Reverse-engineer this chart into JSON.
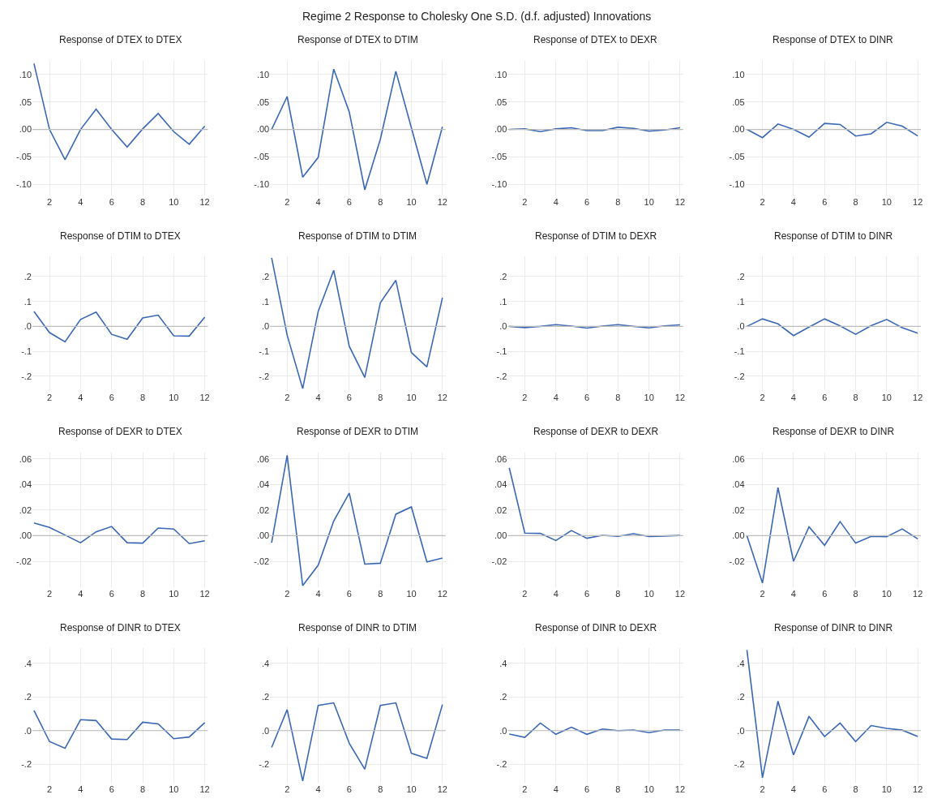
{
  "chart_data": [
    {
      "type": "line",
      "title": "Response of DTEX to DTEX",
      "annotations": [
        "Regime 2 Response to Cholesky One S.D. (d.f. adjusted) Innovations"
      ],
      "x": [
        1,
        2,
        3,
        4,
        5,
        6,
        7,
        8,
        9,
        10,
        11,
        12
      ],
      "values": [
        0.12,
        0.0,
        -0.055,
        0.0,
        0.037,
        0.0,
        -0.032,
        0.001,
        0.029,
        -0.004,
        -0.027,
        0.006
      ],
      "color": "#3a67b5",
      "xlim": [
        0.9,
        12.2
      ],
      "xticks": [
        2,
        4,
        6,
        8,
        10,
        12
      ],
      "ylim": [
        -0.12,
        0.125
      ],
      "yticks": [
        {
          "value": -0.1,
          "label": "-.10"
        },
        {
          "value": -0.05,
          "label": "-.05"
        },
        {
          "value": 0,
          "label": ".00"
        },
        {
          "value": 0.05,
          "label": ".05"
        },
        {
          "value": 0.1,
          "label": ".10"
        }
      ],
      "grid": true,
      "ref_lines": [
        {
          "axis": "y",
          "value": 0
        }
      ]
    },
    {
      "type": "line",
      "title": "Response of DTEX to DTIM",
      "x": [
        1,
        2,
        3,
        4,
        5,
        6,
        7,
        8,
        9,
        10,
        11,
        12
      ],
      "values": [
        0.0,
        0.06,
        -0.087,
        -0.051,
        0.11,
        0.032,
        -0.11,
        -0.018,
        0.106,
        0.003,
        -0.1,
        0.005
      ],
      "color": "#3a67b5",
      "xlim": [
        0.9,
        12.2
      ],
      "xticks": [
        2,
        4,
        6,
        8,
        10,
        12
      ],
      "ylim": [
        -0.12,
        0.125
      ],
      "yticks": [
        {
          "value": -0.1,
          "label": "-.10"
        },
        {
          "value": -0.05,
          "label": "-.05"
        },
        {
          "value": 0,
          "label": ".00"
        },
        {
          "value": 0.05,
          "label": ".05"
        },
        {
          "value": 0.1,
          "label": ".10"
        }
      ],
      "grid": true,
      "ref_lines": [
        {
          "axis": "y",
          "value": 0
        }
      ]
    },
    {
      "type": "line",
      "title": "Response of DTEX to DEXR",
      "x": [
        1,
        2,
        3,
        4,
        5,
        6,
        7,
        8,
        9,
        10,
        11,
        12
      ],
      "values": [
        0.0,
        0.001,
        -0.004,
        0.001,
        0.003,
        -0.002,
        -0.002,
        0.004,
        0.002,
        -0.003,
        -0.001,
        0.003
      ],
      "color": "#3a67b5",
      "xlim": [
        0.9,
        12.2
      ],
      "xticks": [
        2,
        4,
        6,
        8,
        10,
        12
      ],
      "ylim": [
        -0.12,
        0.125
      ],
      "yticks": [
        {
          "value": -0.1,
          "label": "-.10"
        },
        {
          "value": -0.05,
          "label": "-.05"
        },
        {
          "value": 0,
          "label": ".00"
        },
        {
          "value": 0.05,
          "label": ".05"
        },
        {
          "value": 0.1,
          "label": ".10"
        }
      ],
      "grid": true,
      "ref_lines": [
        {
          "axis": "y",
          "value": 0
        }
      ]
    },
    {
      "type": "line",
      "title": "Response of DTEX to DINR",
      "x": [
        1,
        2,
        3,
        4,
        5,
        6,
        7,
        8,
        9,
        10,
        11,
        12
      ],
      "values": [
        0.0,
        -0.015,
        0.01,
        0.0,
        -0.014,
        0.011,
        0.009,
        -0.012,
        -0.008,
        0.013,
        0.006,
        -0.012
      ],
      "color": "#3a67b5",
      "xlim": [
        0.9,
        12.2
      ],
      "xticks": [
        2,
        4,
        6,
        8,
        10,
        12
      ],
      "ylim": [
        -0.12,
        0.125
      ],
      "yticks": [
        {
          "value": -0.1,
          "label": "-.10"
        },
        {
          "value": -0.05,
          "label": "-.05"
        },
        {
          "value": 0,
          "label": ".00"
        },
        {
          "value": 0.05,
          "label": ".05"
        },
        {
          "value": 0.1,
          "label": ".10"
        }
      ],
      "grid": true,
      "ref_lines": [
        {
          "axis": "y",
          "value": 0
        }
      ]
    },
    {
      "type": "line",
      "title": "Response of DTIM to DTEX",
      "x": [
        1,
        2,
        3,
        4,
        5,
        6,
        7,
        8,
        9,
        10,
        11,
        12
      ],
      "values": [
        0.06,
        -0.025,
        -0.062,
        0.028,
        0.057,
        -0.032,
        -0.052,
        0.034,
        0.045,
        -0.038,
        -0.039,
        0.037
      ],
      "color": "#3a67b5",
      "xlim": [
        0.9,
        12.2
      ],
      "xticks": [
        2,
        4,
        6,
        8,
        10,
        12
      ],
      "ylim": [
        -0.26,
        0.28
      ],
      "yticks": [
        {
          "value": -0.2,
          "label": "-.2"
        },
        {
          "value": -0.1,
          "label": "-.1"
        },
        {
          "value": 0,
          "label": ".0"
        },
        {
          "value": 0.1,
          "label": ".1"
        },
        {
          "value": 0.2,
          "label": ".2"
        }
      ],
      "grid": true,
      "ref_lines": [
        {
          "axis": "y",
          "value": 0
        }
      ]
    },
    {
      "type": "line",
      "title": "Response of DTIM to DTIM",
      "x": [
        1,
        2,
        3,
        4,
        5,
        6,
        7,
        8,
        9,
        10,
        11,
        12
      ],
      "values": [
        0.275,
        -0.035,
        -0.25,
        0.06,
        0.225,
        -0.08,
        -0.205,
        0.095,
        0.185,
        -0.105,
        -0.163,
        0.115
      ],
      "color": "#3a67b5",
      "xlim": [
        0.9,
        12.2
      ],
      "xticks": [
        2,
        4,
        6,
        8,
        10,
        12
      ],
      "ylim": [
        -0.26,
        0.28
      ],
      "yticks": [
        {
          "value": -0.2,
          "label": "-.2"
        },
        {
          "value": -0.1,
          "label": "-.1"
        },
        {
          "value": 0,
          "label": ".0"
        },
        {
          "value": 0.1,
          "label": ".1"
        },
        {
          "value": 0.2,
          "label": ".2"
        }
      ],
      "grid": true,
      "ref_lines": [
        {
          "axis": "y",
          "value": 0
        }
      ]
    },
    {
      "type": "line",
      "title": "Response of DTIM to DEXR",
      "x": [
        1,
        2,
        3,
        4,
        5,
        6,
        7,
        8,
        9,
        10,
        11,
        12
      ],
      "values": [
        0.0,
        -0.005,
        0.0,
        0.007,
        0.001,
        -0.007,
        0.001,
        0.007,
        0.0,
        -0.006,
        0.002,
        0.006
      ],
      "color": "#3a67b5",
      "xlim": [
        0.9,
        12.2
      ],
      "xticks": [
        2,
        4,
        6,
        8,
        10,
        12
      ],
      "ylim": [
        -0.26,
        0.28
      ],
      "yticks": [
        {
          "value": -0.2,
          "label": "-.2"
        },
        {
          "value": -0.1,
          "label": "-.1"
        },
        {
          "value": 0,
          "label": ".0"
        },
        {
          "value": 0.1,
          "label": ".1"
        },
        {
          "value": 0.2,
          "label": ".2"
        }
      ],
      "grid": true,
      "ref_lines": [
        {
          "axis": "y",
          "value": 0
        }
      ]
    },
    {
      "type": "line",
      "title": "Response of DTIM to DINR",
      "x": [
        1,
        2,
        3,
        4,
        5,
        6,
        7,
        8,
        9,
        10,
        11,
        12
      ],
      "values": [
        0.0,
        0.03,
        0.01,
        -0.037,
        -0.003,
        0.03,
        0.002,
        -0.032,
        0.003,
        0.028,
        -0.005,
        -0.027
      ],
      "color": "#3a67b5",
      "xlim": [
        0.9,
        12.2
      ],
      "xticks": [
        2,
        4,
        6,
        8,
        10,
        12
      ],
      "ylim": [
        -0.26,
        0.28
      ],
      "yticks": [
        {
          "value": -0.2,
          "label": "-.2"
        },
        {
          "value": -0.1,
          "label": "-.1"
        },
        {
          "value": 0,
          "label": ".0"
        },
        {
          "value": 0.1,
          "label": ".1"
        },
        {
          "value": 0.2,
          "label": ".2"
        }
      ],
      "grid": true,
      "ref_lines": [
        {
          "axis": "y",
          "value": 0
        }
      ]
    },
    {
      "type": "line",
      "title": "Response of DEXR to DTEX",
      "x": [
        1,
        2,
        3,
        4,
        5,
        6,
        7,
        8,
        9,
        10,
        11,
        12
      ],
      "values": [
        0.01,
        0.0065,
        0.0005,
        -0.0055,
        0.003,
        0.0072,
        -0.0055,
        -0.0058,
        0.006,
        0.0052,
        -0.0062,
        -0.004
      ],
      "color": "#3a67b5",
      "xlim": [
        0.9,
        12.2
      ],
      "xticks": [
        2,
        4,
        6,
        8,
        10,
        12
      ],
      "ylim": [
        -0.04,
        0.065
      ],
      "yticks": [
        {
          "value": -0.02,
          "label": "-.02"
        },
        {
          "value": 0,
          "label": ".00"
        },
        {
          "value": 0.02,
          "label": ".02"
        },
        {
          "value": 0.04,
          "label": ".04"
        },
        {
          "value": 0.06,
          "label": ".06"
        }
      ],
      "grid": true,
      "ref_lines": [
        {
          "axis": "y",
          "value": 0
        }
      ]
    },
    {
      "type": "line",
      "title": "Response of DEXR to DTIM",
      "x": [
        1,
        2,
        3,
        4,
        5,
        6,
        7,
        8,
        9,
        10,
        11,
        12
      ],
      "values": [
        -0.0055,
        0.0628,
        -0.039,
        -0.023,
        0.0115,
        0.0333,
        -0.0222,
        -0.0215,
        0.0168,
        0.0225,
        -0.0205,
        -0.0175
      ],
      "color": "#3a67b5",
      "xlim": [
        0.9,
        12.2
      ],
      "xticks": [
        2,
        4,
        6,
        8,
        10,
        12
      ],
      "ylim": [
        -0.04,
        0.065
      ],
      "yticks": [
        {
          "value": -0.02,
          "label": "-.02"
        },
        {
          "value": 0,
          "label": ".00"
        },
        {
          "value": 0.02,
          "label": ".02"
        },
        {
          "value": 0.04,
          "label": ".04"
        },
        {
          "value": 0.06,
          "label": ".06"
        }
      ],
      "grid": true,
      "ref_lines": [
        {
          "axis": "y",
          "value": 0
        }
      ]
    },
    {
      "type": "line",
      "title": "Response of DEXR to DEXR",
      "x": [
        1,
        2,
        3,
        4,
        5,
        6,
        7,
        8,
        9,
        10,
        11,
        12
      ],
      "values": [
        0.053,
        0.002,
        0.0018,
        -0.0038,
        0.004,
        -0.002,
        0.0003,
        -0.0005,
        0.0015,
        -0.0007,
        -0.0003,
        0.0002
      ],
      "color": "#3a67b5",
      "xlim": [
        0.9,
        12.2
      ],
      "xticks": [
        2,
        4,
        6,
        8,
        10,
        12
      ],
      "ylim": [
        -0.04,
        0.065
      ],
      "yticks": [
        {
          "value": -0.02,
          "label": "-.02"
        },
        {
          "value": 0,
          "label": ".00"
        },
        {
          "value": 0.02,
          "label": ".02"
        },
        {
          "value": 0.04,
          "label": ".04"
        },
        {
          "value": 0.06,
          "label": ".06"
        }
      ],
      "grid": true,
      "ref_lines": [
        {
          "axis": "y",
          "value": 0
        }
      ]
    },
    {
      "type": "line",
      "title": "Response of DEXR to DINR",
      "x": [
        1,
        2,
        3,
        4,
        5,
        6,
        7,
        8,
        9,
        10,
        11,
        12
      ],
      "values": [
        0.0,
        -0.037,
        0.0375,
        -0.02,
        0.007,
        -0.0075,
        0.011,
        -0.0058,
        -0.0005,
        -0.0008,
        0.0053,
        -0.0025
      ],
      "color": "#3a67b5",
      "xlim": [
        0.9,
        12.2
      ],
      "xticks": [
        2,
        4,
        6,
        8,
        10,
        12
      ],
      "ylim": [
        -0.04,
        0.065
      ],
      "yticks": [
        {
          "value": -0.02,
          "label": "-.02"
        },
        {
          "value": 0,
          "label": ".00"
        },
        {
          "value": 0.02,
          "label": ".02"
        },
        {
          "value": 0.04,
          "label": ".04"
        },
        {
          "value": 0.06,
          "label": ".06"
        }
      ],
      "grid": true,
      "ref_lines": [
        {
          "axis": "y",
          "value": 0
        }
      ]
    },
    {
      "type": "line",
      "title": "Response of DINR to DTEX",
      "x": [
        1,
        2,
        3,
        4,
        5,
        6,
        7,
        8,
        9,
        10,
        11,
        12
      ],
      "values": [
        0.12,
        -0.065,
        -0.105,
        0.065,
        0.06,
        -0.05,
        -0.053,
        0.05,
        0.04,
        -0.048,
        -0.038,
        0.048
      ],
      "color": "#3a67b5",
      "xlim": [
        0.9,
        12.2
      ],
      "xticks": [
        2,
        4,
        6,
        8,
        10,
        12
      ],
      "ylim": [
        -0.31,
        0.49
      ],
      "yticks": [
        {
          "value": -0.2,
          "label": "-.2"
        },
        {
          "value": 0,
          "label": ".0"
        },
        {
          "value": 0.2,
          "label": ".2"
        },
        {
          "value": 0.4,
          "label": ".4"
        }
      ],
      "grid": true,
      "ref_lines": [
        {
          "axis": "y",
          "value": 0
        }
      ]
    },
    {
      "type": "line",
      "title": "Response of DINR to DTIM",
      "x": [
        1,
        2,
        3,
        4,
        5,
        6,
        7,
        8,
        9,
        10,
        11,
        12
      ],
      "values": [
        -0.1,
        0.125,
        -0.3,
        0.15,
        0.165,
        -0.075,
        -0.23,
        0.15,
        0.165,
        -0.135,
        -0.165,
        0.155
      ],
      "color": "#3a67b5",
      "xlim": [
        0.9,
        12.2
      ],
      "xticks": [
        2,
        4,
        6,
        8,
        10,
        12
      ],
      "ylim": [
        -0.31,
        0.49
      ],
      "yticks": [
        {
          "value": -0.2,
          "label": "-.2"
        },
        {
          "value": 0,
          "label": ".0"
        },
        {
          "value": 0.2,
          "label": ".2"
        },
        {
          "value": 0.4,
          "label": ".4"
        }
      ],
      "grid": true,
      "ref_lines": [
        {
          "axis": "y",
          "value": 0
        }
      ]
    },
    {
      "type": "line",
      "title": "Response of DINR to DEXR",
      "x": [
        1,
        2,
        3,
        4,
        5,
        6,
        7,
        8,
        9,
        10,
        11,
        12
      ],
      "values": [
        -0.02,
        -0.04,
        0.045,
        -0.022,
        0.02,
        -0.022,
        0.01,
        0.0,
        0.004,
        -0.012,
        0.004,
        0.004
      ],
      "color": "#3a67b5",
      "xlim": [
        0.9,
        12.2
      ],
      "xticks": [
        2,
        4,
        6,
        8,
        10,
        12
      ],
      "ylim": [
        -0.31,
        0.49
      ],
      "yticks": [
        {
          "value": -0.2,
          "label": "-.2"
        },
        {
          "value": 0,
          "label": ".0"
        },
        {
          "value": 0.2,
          "label": ".2"
        },
        {
          "value": 0.4,
          "label": ".4"
        }
      ],
      "grid": true,
      "ref_lines": [
        {
          "axis": "y",
          "value": 0
        }
      ]
    },
    {
      "type": "line",
      "title": "Response of DINR to DINR",
      "x": [
        1,
        2,
        3,
        4,
        5,
        6,
        7,
        8,
        9,
        10,
        11,
        12
      ],
      "values": [
        0.48,
        -0.28,
        0.175,
        -0.145,
        0.085,
        -0.035,
        0.045,
        -0.065,
        0.03,
        0.013,
        0.003,
        -0.035
      ],
      "color": "#3a67b5",
      "xlim": [
        0.9,
        12.2
      ],
      "xticks": [
        2,
        4,
        6,
        8,
        10,
        12
      ],
      "ylim": [
        -0.31,
        0.49
      ],
      "yticks": [
        {
          "value": -0.2,
          "label": "-.2"
        },
        {
          "value": 0,
          "label": ".0"
        },
        {
          "value": 0.2,
          "label": ".2"
        },
        {
          "value": 0.4,
          "label": ".4"
        }
      ],
      "grid": true,
      "ref_lines": [
        {
          "axis": "y",
          "value": 0
        }
      ]
    }
  ]
}
